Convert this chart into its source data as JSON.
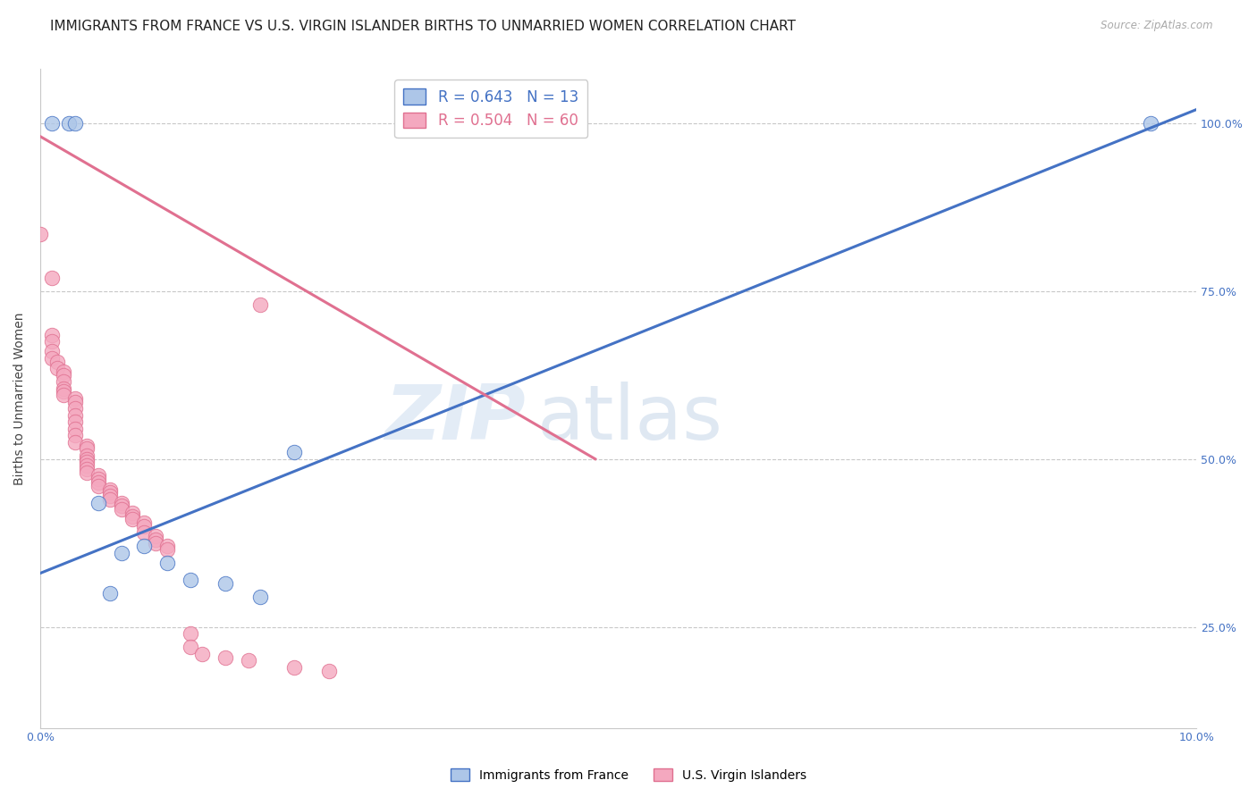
{
  "title": "IMMIGRANTS FROM FRANCE VS U.S. VIRGIN ISLANDER BIRTHS TO UNMARRIED WOMEN CORRELATION CHART",
  "source": "Source: ZipAtlas.com",
  "ylabel": "Births to Unmarried Women",
  "blue_R": 0.643,
  "blue_N": 13,
  "pink_R": 0.504,
  "pink_N": 60,
  "blue_color": "#adc6e8",
  "pink_color": "#f4a8bf",
  "blue_line_color": "#4472c4",
  "pink_line_color": "#e07090",
  "right_axis_color": "#4472c4",
  "watermark_zip": "ZIP",
  "watermark_atlas": "atlas",
  "blue_line": [
    [
      0.0,
      0.33
    ],
    [
      0.1,
      1.02
    ]
  ],
  "pink_line": [
    [
      0.0,
      0.98
    ],
    [
      0.048,
      0.5
    ]
  ],
  "blue_points": [
    [
      0.001,
      1.0
    ],
    [
      0.0025,
      1.0
    ],
    [
      0.003,
      1.0
    ],
    [
      0.096,
      1.0
    ],
    [
      0.005,
      0.435
    ],
    [
      0.006,
      0.3
    ],
    [
      0.007,
      0.36
    ],
    [
      0.009,
      0.37
    ],
    [
      0.011,
      0.345
    ],
    [
      0.013,
      0.32
    ],
    [
      0.016,
      0.315
    ],
    [
      0.019,
      0.295
    ],
    [
      0.022,
      0.51
    ]
  ],
  "pink_points": [
    [
      0.0,
      0.835
    ],
    [
      0.001,
      0.77
    ],
    [
      0.001,
      0.685
    ],
    [
      0.001,
      0.675
    ],
    [
      0.001,
      0.66
    ],
    [
      0.001,
      0.65
    ],
    [
      0.0015,
      0.645
    ],
    [
      0.0015,
      0.635
    ],
    [
      0.002,
      0.63
    ],
    [
      0.002,
      0.625
    ],
    [
      0.002,
      0.615
    ],
    [
      0.002,
      0.605
    ],
    [
      0.002,
      0.6
    ],
    [
      0.002,
      0.595
    ],
    [
      0.003,
      0.59
    ],
    [
      0.003,
      0.585
    ],
    [
      0.003,
      0.575
    ],
    [
      0.003,
      0.565
    ],
    [
      0.003,
      0.555
    ],
    [
      0.003,
      0.545
    ],
    [
      0.003,
      0.535
    ],
    [
      0.003,
      0.525
    ],
    [
      0.004,
      0.52
    ],
    [
      0.004,
      0.515
    ],
    [
      0.004,
      0.505
    ],
    [
      0.004,
      0.5
    ],
    [
      0.004,
      0.495
    ],
    [
      0.004,
      0.49
    ],
    [
      0.004,
      0.485
    ],
    [
      0.004,
      0.48
    ],
    [
      0.005,
      0.475
    ],
    [
      0.005,
      0.47
    ],
    [
      0.005,
      0.465
    ],
    [
      0.005,
      0.46
    ],
    [
      0.006,
      0.455
    ],
    [
      0.006,
      0.45
    ],
    [
      0.006,
      0.445
    ],
    [
      0.006,
      0.44
    ],
    [
      0.007,
      0.435
    ],
    [
      0.007,
      0.43
    ],
    [
      0.007,
      0.425
    ],
    [
      0.008,
      0.42
    ],
    [
      0.008,
      0.415
    ],
    [
      0.008,
      0.41
    ],
    [
      0.009,
      0.405
    ],
    [
      0.009,
      0.4
    ],
    [
      0.009,
      0.39
    ],
    [
      0.01,
      0.385
    ],
    [
      0.01,
      0.38
    ],
    [
      0.01,
      0.375
    ],
    [
      0.011,
      0.37
    ],
    [
      0.011,
      0.365
    ],
    [
      0.013,
      0.24
    ],
    [
      0.013,
      0.22
    ],
    [
      0.014,
      0.21
    ],
    [
      0.016,
      0.205
    ],
    [
      0.018,
      0.2
    ],
    [
      0.019,
      0.73
    ],
    [
      0.022,
      0.19
    ],
    [
      0.025,
      0.185
    ]
  ],
  "xlim": [
    0.0,
    0.1
  ],
  "ylim": [
    0.1,
    1.08
  ],
  "yticks": [
    0.25,
    0.5,
    0.75,
    1.0
  ],
  "ytick_labels": [
    "25.0%",
    "50.0%",
    "75.0%",
    "100.0%"
  ],
  "xticks": [
    0.0,
    0.02,
    0.04,
    0.06,
    0.08,
    0.1
  ],
  "xtick_labels_shown": [
    "0.0%",
    "10.0%"
  ],
  "grid_color": "#c8c8c8",
  "title_fontsize": 11,
  "axis_label_fontsize": 10,
  "tick_fontsize": 9,
  "legend_fontsize": 12,
  "background_color": "#ffffff"
}
